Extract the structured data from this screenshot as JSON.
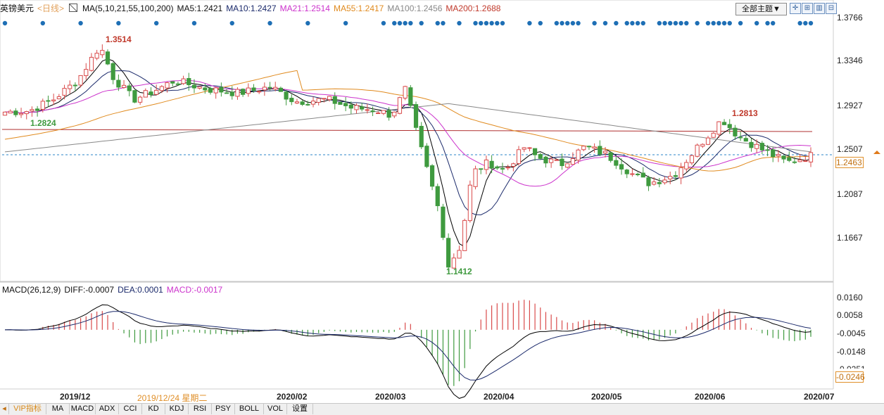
{
  "header": {
    "symbol": "英镑美元",
    "period": "<日线>",
    "ma_set": "MA(5,10,21,55,100,200)",
    "ma5": "MA5:1.2421",
    "ma10": "MA10:1.2427",
    "ma21": "MA21:1.2514",
    "ma55": "MA55:1.2417",
    "ma100": "MA100:1.2456",
    "ma200": "MA200:1.2688",
    "theme_button": "全部主题▼"
  },
  "colors": {
    "up": "#d94b4b",
    "down": "#3f9a3f",
    "ma5": "#000000",
    "ma10": "#1b2a6b",
    "ma21": "#cc33cc",
    "ma55": "#e08a1e",
    "ma100": "#888888",
    "ma200": "#b03030",
    "marker": "#1e6fb5"
  },
  "price_axis": [
    "1.3766",
    "1.3346",
    "1.2927",
    "1.2507",
    "1.2087",
    "1.1667"
  ],
  "current_price": "1.2463",
  "annotations": {
    "high": "1.3514",
    "low": "1.1412",
    "left": "1.2824",
    "recent_high": "1.2813"
  },
  "macd": {
    "title": "MACD(26,12,9)",
    "diff": "DIFF:-0.0007",
    "dea": "DEA:0.0001",
    "macd": "MACD:-0.0017",
    "axis": [
      "0.0160",
      "0.0058",
      "-0.0045",
      "-0.0148",
      "-0.0251"
    ],
    "current": "-0.0246"
  },
  "dates": [
    "2019/12",
    "2020/02",
    "2020/03",
    "2020/04",
    "2020/05",
    "2020/06",
    "2020/07"
  ],
  "cursor_date": "2019/12/24 星期二",
  "tabs": [
    "VIP指标",
    "MA",
    "MACD",
    "ADX",
    "CCI",
    "KD",
    "KDJ",
    "RSI",
    "PSY",
    "BOLL",
    "VOL",
    "设置"
  ],
  "chart_data": {
    "type": "candlestick",
    "ylim": [
      1.13,
      1.39
    ],
    "x": [
      "2019/12",
      "2020/02",
      "2020/03",
      "2020/04",
      "2020/05",
      "2020/06",
      "2020/07"
    ],
    "close_approx": [
      1.29,
      1.31,
      1.3514,
      1.31,
      1.305,
      1.3,
      1.29,
      1.295,
      1.28,
      1.22,
      1.15,
      1.1412,
      1.21,
      1.24,
      1.25,
      1.245,
      1.23,
      1.22,
      1.23,
      1.27,
      1.2813,
      1.26,
      1.2463
    ],
    "macd_range": [
      -0.03,
      0.017
    ]
  }
}
